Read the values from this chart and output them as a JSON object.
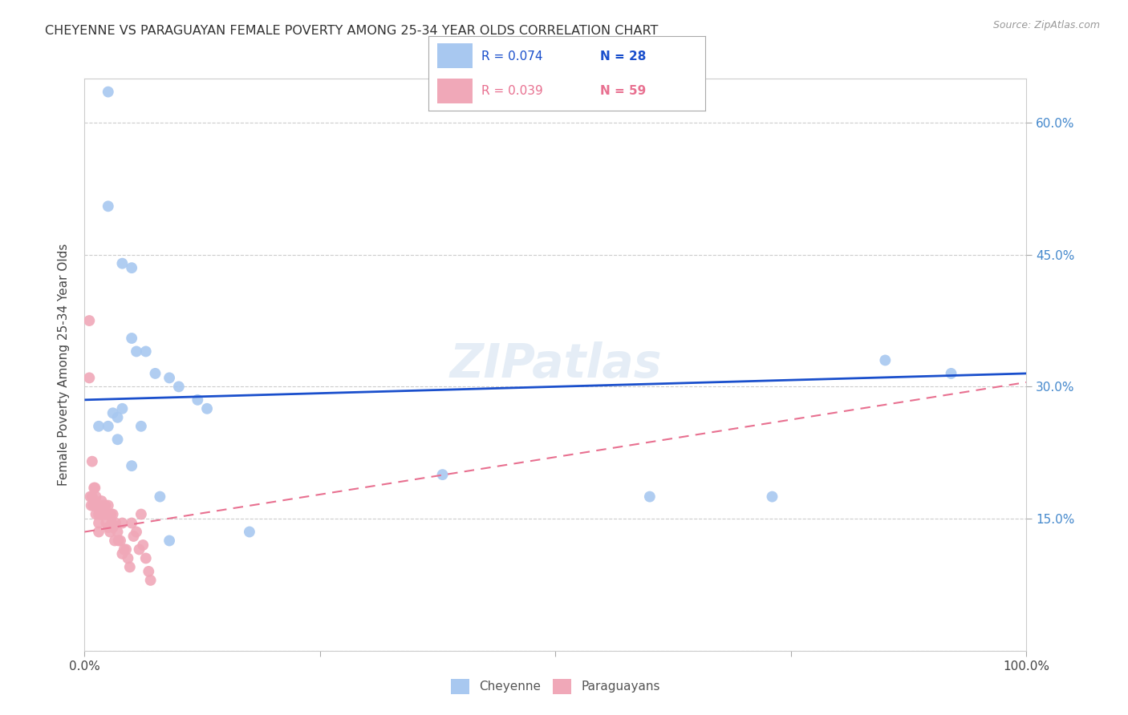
{
  "title": "CHEYENNE VS PARAGUAYAN FEMALE POVERTY AMONG 25-34 YEAR OLDS CORRELATION CHART",
  "source": "Source: ZipAtlas.com",
  "ylabel": "Female Poverty Among 25-34 Year Olds",
  "xlim": [
    0,
    1.0
  ],
  "ylim": [
    0,
    0.65
  ],
  "background_color": "#ffffff",
  "grid_color": "#cccccc",
  "cheyenne_color": "#a8c8f0",
  "paraguayan_color": "#f0a8b8",
  "cheyenne_line_color": "#1a4fcc",
  "paraguayan_line_color": "#e87090",
  "right_ytick_color": "#4488cc",
  "legend_cheyenne_r": "R = 0.074",
  "legend_cheyenne_n": "N = 28",
  "legend_paraguayan_r": "R = 0.039",
  "legend_paraguayan_n": "N = 59",
  "cheyenne_x": [
    0.025,
    0.025,
    0.04,
    0.05,
    0.05,
    0.055,
    0.065,
    0.075,
    0.09,
    0.1,
    0.12,
    0.13,
    0.03,
    0.035,
    0.015,
    0.025,
    0.04,
    0.035,
    0.05,
    0.06,
    0.38,
    0.6,
    0.73,
    0.85,
    0.92,
    0.175,
    0.08,
    0.09
  ],
  "cheyenne_y": [
    0.635,
    0.505,
    0.44,
    0.435,
    0.355,
    0.34,
    0.34,
    0.315,
    0.31,
    0.3,
    0.285,
    0.275,
    0.27,
    0.265,
    0.255,
    0.255,
    0.275,
    0.24,
    0.21,
    0.255,
    0.2,
    0.175,
    0.175,
    0.33,
    0.315,
    0.135,
    0.175,
    0.125
  ],
  "paraguayan_x": [
    0.005,
    0.005,
    0.006,
    0.007,
    0.008,
    0.008,
    0.009,
    0.01,
    0.01,
    0.011,
    0.012,
    0.012,
    0.013,
    0.014,
    0.015,
    0.015,
    0.015,
    0.016,
    0.016,
    0.017,
    0.018,
    0.018,
    0.019,
    0.02,
    0.02,
    0.021,
    0.022,
    0.022,
    0.023,
    0.024,
    0.025,
    0.025,
    0.025,
    0.026,
    0.027,
    0.028,
    0.029,
    0.03,
    0.03,
    0.032,
    0.033,
    0.035,
    0.036,
    0.038,
    0.04,
    0.04,
    0.042,
    0.044,
    0.046,
    0.048,
    0.05,
    0.052,
    0.055,
    0.058,
    0.06,
    0.062,
    0.065,
    0.068,
    0.07
  ],
  "paraguayan_y": [
    0.375,
    0.31,
    0.175,
    0.165,
    0.215,
    0.175,
    0.165,
    0.185,
    0.165,
    0.185,
    0.175,
    0.155,
    0.165,
    0.165,
    0.155,
    0.145,
    0.135,
    0.165,
    0.155,
    0.165,
    0.17,
    0.155,
    0.155,
    0.165,
    0.155,
    0.155,
    0.165,
    0.155,
    0.145,
    0.155,
    0.165,
    0.155,
    0.14,
    0.155,
    0.135,
    0.155,
    0.145,
    0.155,
    0.14,
    0.125,
    0.145,
    0.135,
    0.125,
    0.125,
    0.145,
    0.11,
    0.115,
    0.115,
    0.105,
    0.095,
    0.145,
    0.13,
    0.135,
    0.115,
    0.155,
    0.12,
    0.105,
    0.09,
    0.08
  ],
  "cheyenne_regression": [
    0.285,
    0.315
  ],
  "paraguayan_regression_start": 0.135,
  "paraguayan_regression_end": 0.305,
  "watermark": "ZIPatlas",
  "marker_size": 100
}
